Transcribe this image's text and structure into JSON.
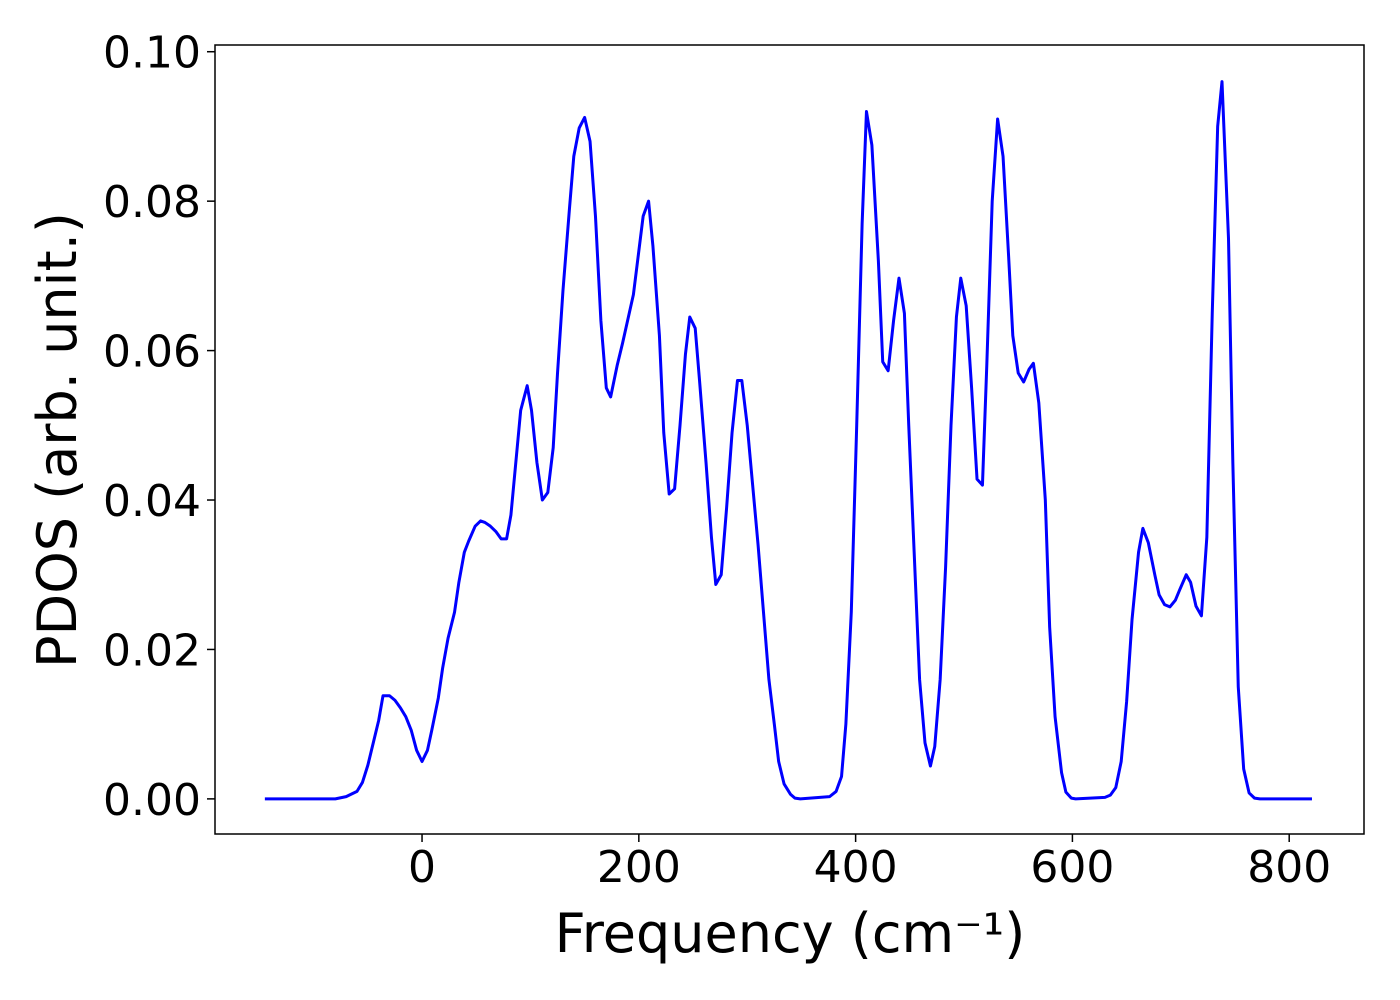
{
  "chart_data": {
    "type": "line",
    "xlabel": "Frequency (cm⁻¹)",
    "ylabel": "PDOS (arb. unit.)",
    "color": "#0000ff",
    "x": [
      -145,
      -80,
      -70,
      -60,
      -55,
      -50,
      -45,
      -40,
      -36,
      -30,
      -25,
      -20,
      -15,
      -10,
      -5,
      0,
      5,
      9,
      15,
      19,
      24,
      30,
      34,
      39,
      43,
      49,
      54,
      58,
      63,
      68,
      73,
      78,
      82,
      91,
      97,
      101,
      106,
      111,
      116,
      121,
      125,
      130,
      136,
      140,
      145,
      150,
      155,
      160,
      165,
      170,
      174,
      180,
      185,
      195,
      204,
      209,
      213,
      219,
      223,
      228,
      233,
      238,
      243,
      247,
      252,
      256,
      262,
      267,
      271,
      276,
      281,
      286,
      291,
      295,
      300,
      305,
      310,
      315,
      320,
      325,
      329,
      334,
      340,
      344,
      349,
      376,
      382,
      387,
      391,
      396,
      401,
      406,
      410,
      415,
      421,
      425,
      430,
      435,
      440,
      445,
      449,
      454,
      459,
      464,
      469,
      473,
      478,
      483,
      488,
      493,
      497,
      502,
      507,
      512,
      517,
      521,
      526,
      531,
      536,
      541,
      545,
      550,
      555,
      560,
      564,
      569,
      575,
      579,
      584,
      590,
      594,
      599,
      603,
      630,
      635,
      640,
      645,
      650,
      655,
      661,
      665,
      670,
      676,
      680,
      685,
      690,
      695,
      699,
      705,
      709,
      714,
      719,
      724,
      729,
      734,
      738,
      744,
      748,
      753,
      758,
      763,
      768,
      773,
      821
    ],
    "values": [
      0,
      0,
      0.0003,
      0.001,
      0.0022,
      0.0045,
      0.0075,
      0.0105,
      0.0138,
      0.0138,
      0.0132,
      0.0122,
      0.011,
      0.0092,
      0.0065,
      0.005,
      0.0065,
      0.0092,
      0.0135,
      0.0175,
      0.0215,
      0.025,
      0.029,
      0.033,
      0.0345,
      0.0365,
      0.0372,
      0.037,
      0.0365,
      0.0358,
      0.0348,
      0.0348,
      0.038,
      0.052,
      0.0553,
      0.052,
      0.045,
      0.04,
      0.041,
      0.047,
      0.057,
      0.068,
      0.079,
      0.086,
      0.0898,
      0.0912,
      0.088,
      0.078,
      0.064,
      0.055,
      0.0538,
      0.058,
      0.061,
      0.0675,
      0.078,
      0.08,
      0.074,
      0.062,
      0.049,
      0.0408,
      0.0415,
      0.05,
      0.0595,
      0.0645,
      0.063,
      0.056,
      0.045,
      0.035,
      0.0287,
      0.03,
      0.039,
      0.049,
      0.056,
      0.056,
      0.05,
      0.042,
      0.034,
      0.025,
      0.016,
      0.01,
      0.005,
      0.002,
      0.0006,
      0.0001,
      0,
      0.0003,
      0.001,
      0.003,
      0.01,
      0.025,
      0.05,
      0.077,
      0.092,
      0.0875,
      0.072,
      0.0585,
      0.0573,
      0.064,
      0.0697,
      0.065,
      0.05,
      0.033,
      0.016,
      0.0075,
      0.0044,
      0.007,
      0.016,
      0.031,
      0.05,
      0.0645,
      0.0697,
      0.066,
      0.055,
      0.0428,
      0.042,
      0.058,
      0.08,
      0.091,
      0.086,
      0.073,
      0.062,
      0.057,
      0.0558,
      0.0575,
      0.0583,
      0.053,
      0.04,
      0.023,
      0.011,
      0.0035,
      0.0009,
      0.0001,
      0,
      0.0002,
      0.0005,
      0.0015,
      0.005,
      0.013,
      0.024,
      0.033,
      0.0362,
      0.0343,
      0.03,
      0.0273,
      0.026,
      0.0257,
      0.0266,
      0.028,
      0.03,
      0.029,
      0.0258,
      0.0245,
      0.035,
      0.065,
      0.09,
      0.096,
      0.075,
      0.045,
      0.015,
      0.004,
      0.0008,
      0.0001,
      0,
      0
    ],
    "xlim": [
      -191,
      869
    ],
    "ylim": [
      -0.0047,
      0.1009
    ],
    "xticks": [
      0,
      200,
      400,
      600,
      800
    ],
    "yticks": [
      {
        "value": 0,
        "label": "0.00"
      },
      {
        "value": 0.02,
        "label": "0.02"
      },
      {
        "value": 0.04,
        "label": "0.04"
      },
      {
        "value": 0.06,
        "label": "0.06"
      },
      {
        "value": 0.08,
        "label": "0.08"
      },
      {
        "value": 0.1,
        "label": "0.10"
      }
    ],
    "grid": false
  }
}
